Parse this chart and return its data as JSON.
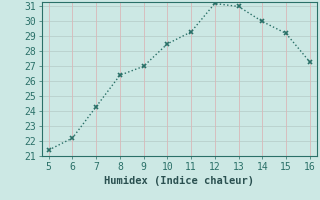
{
  "x": [
    5,
    6,
    7,
    8,
    9,
    10,
    11,
    12,
    13,
    14,
    15,
    16
  ],
  "y": [
    21.4,
    22.2,
    24.3,
    26.4,
    27.0,
    28.5,
    29.3,
    31.2,
    31.0,
    30.0,
    29.2,
    27.3
  ],
  "xlabel": "Humidex (Indice chaleur)",
  "xlim": [
    5,
    16
  ],
  "ylim": [
    21,
    31
  ],
  "yticks": [
    21,
    22,
    23,
    24,
    25,
    26,
    27,
    28,
    29,
    30,
    31
  ],
  "xticks": [
    5,
    6,
    7,
    8,
    9,
    10,
    11,
    12,
    13,
    14,
    15,
    16
  ],
  "line_color": "#2a7068",
  "marker": "x",
  "bg_color": "#cce8e4",
  "grid_color_h": "#b8d0cc",
  "grid_color_v": "#d8b8b8",
  "tick_color": "#2a7068",
  "label_color": "#2a5050",
  "font_size": 7.0,
  "xlabel_fontsize": 7.5
}
